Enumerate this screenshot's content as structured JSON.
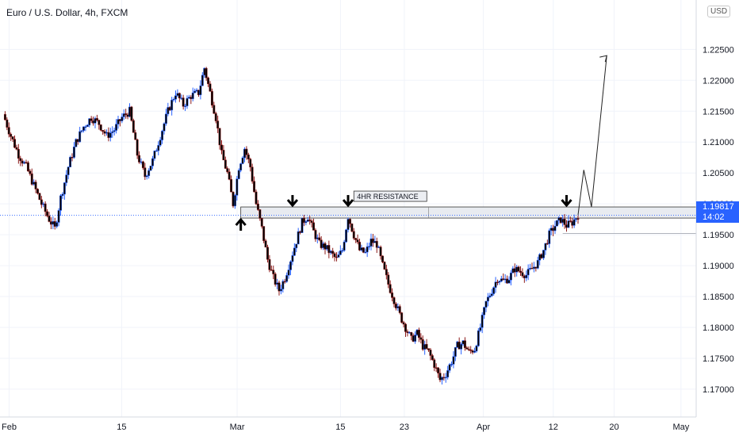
{
  "header": {
    "title": "Euro / U.S. Dollar, 4h, FXCM",
    "currency_button": "USD"
  },
  "price_tag": {
    "price": "1.19817",
    "countdown": "14:02",
    "color": "#2962ff"
  },
  "colors": {
    "up": "#2962ff",
    "down": "#8b1a1a",
    "candle_body": "#000000",
    "grid": "#f0f3fa",
    "zone_fill": "#e8ebf0"
  },
  "chart_data": {
    "type": "candlestick",
    "symbol": "EUR/USD",
    "interval": "4h",
    "ylim": [
      1.1655,
      1.233
    ],
    "yticks": [
      "1.22500",
      "1.22000",
      "1.21500",
      "1.21000",
      "1.20500",
      "1.20000",
      "1.19500",
      "1.19000",
      "1.18500",
      "1.18000",
      "1.17500",
      "1.17000"
    ],
    "ytick_values": [
      1.225,
      1.22,
      1.215,
      1.21,
      1.205,
      1.2,
      1.195,
      1.19,
      1.185,
      1.18,
      1.175,
      1.17
    ],
    "xticks": [
      "Feb",
      "15",
      "Mar",
      "15",
      "23",
      "Apr",
      "12",
      "20",
      "May"
    ],
    "price_path": [
      [
        0,
        1.2145
      ],
      [
        4,
        1.211
      ],
      [
        8,
        1.208
      ],
      [
        12,
        1.206
      ],
      [
        16,
        1.203
      ],
      [
        20,
        1.2
      ],
      [
        24,
        1.1975
      ],
      [
        27,
        1.196
      ],
      [
        30,
        1.201
      ],
      [
        34,
        1.206
      ],
      [
        38,
        1.21
      ],
      [
        42,
        1.2125
      ],
      [
        46,
        1.214
      ],
      [
        50,
        1.213
      ],
      [
        54,
        1.211
      ],
      [
        58,
        1.212
      ],
      [
        62,
        1.214
      ],
      [
        66,
        1.215
      ],
      [
        70,
        1.208
      ],
      [
        74,
        1.2045
      ],
      [
        78,
        1.207
      ],
      [
        82,
        1.211
      ],
      [
        86,
        1.215
      ],
      [
        90,
        1.218
      ],
      [
        94,
        1.216
      ],
      [
        98,
        1.2175
      ],
      [
        102,
        1.218
      ],
      [
        105,
        1.222
      ],
      [
        108,
        1.218
      ],
      [
        111,
        1.214
      ],
      [
        114,
        1.208
      ],
      [
        117,
        1.205
      ],
      [
        120,
        1.2
      ],
      [
        123,
        1.206
      ],
      [
        126,
        1.209
      ],
      [
        129,
        1.206
      ],
      [
        132,
        1.2
      ],
      [
        135,
        1.196
      ],
      [
        138,
        1.191
      ],
      [
        141,
        1.188
      ],
      [
        144,
        1.186
      ],
      [
        147,
        1.188
      ],
      [
        150,
        1.191
      ],
      [
        153,
        1.194
      ],
      [
        156,
        1.197
      ],
      [
        159,
        1.198
      ],
      [
        162,
        1.1955
      ],
      [
        165,
        1.1935
      ],
      [
        168,
        1.193
      ],
      [
        171,
        1.192
      ],
      [
        174,
        1.191
      ],
      [
        177,
        1.1925
      ],
      [
        180,
        1.198
      ],
      [
        183,
        1.195
      ],
      [
        186,
        1.1925
      ],
      [
        189,
        1.192
      ],
      [
        192,
        1.194
      ],
      [
        195,
        1.1935
      ],
      [
        198,
        1.19
      ],
      [
        201,
        1.187
      ],
      [
        204,
        1.1845
      ],
      [
        207,
        1.182
      ],
      [
        210,
        1.18
      ],
      [
        213,
        1.178
      ],
      [
        216,
        1.179
      ],
      [
        219,
        1.177
      ],
      [
        222,
        1.176
      ],
      [
        225,
        1.174
      ],
      [
        228,
        1.1715
      ],
      [
        231,
        1.1725
      ],
      [
        234,
        1.1745
      ],
      [
        237,
        1.177
      ],
      [
        240,
        1.1775
      ],
      [
        243,
        1.176
      ],
      [
        246,
        1.1765
      ],
      [
        249,
        1.18
      ],
      [
        252,
        1.184
      ],
      [
        255,
        1.186
      ],
      [
        258,
        1.188
      ],
      [
        261,
        1.1875
      ],
      [
        264,
        1.188
      ],
      [
        267,
        1.1895
      ],
      [
        270,
        1.189
      ],
      [
        273,
        1.1885
      ],
      [
        276,
        1.1895
      ],
      [
        279,
        1.1905
      ],
      [
        282,
        1.1925
      ],
      [
        285,
        1.195
      ],
      [
        288,
        1.1965
      ],
      [
        291,
        1.1975
      ],
      [
        294,
        1.1965
      ],
      [
        297,
        1.197
      ],
      [
        300,
        1.1982
      ]
    ],
    "resistance_zone": {
      "top": 1.1995,
      "bottom": 1.1977,
      "label": "4HR RESISTANCE"
    },
    "current_price_line": 1.19817,
    "support_line": 1.1952,
    "annotations": {
      "arrows_down_at_index": [
        151,
        180,
        294
      ],
      "arrow_up_at_index": 124,
      "projection_path": [
        [
          300,
          1.1982
        ],
        [
          303,
          1.2055
        ],
        [
          307,
          1.1995
        ],
        [
          315,
          1.224
        ]
      ]
    },
    "grid": true
  }
}
